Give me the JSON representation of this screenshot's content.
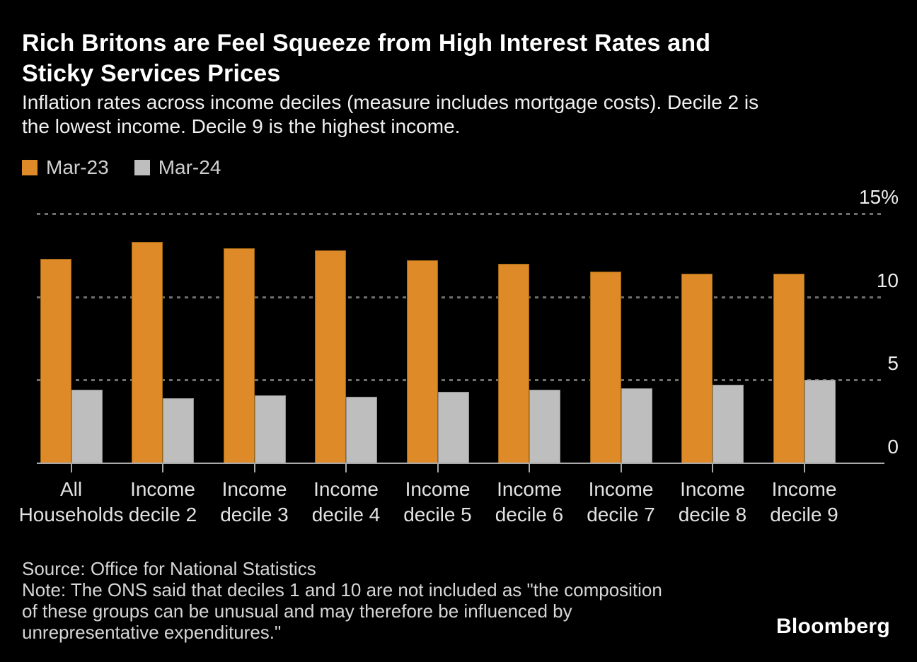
{
  "header": {
    "title_lines": [
      "Rich Britons are Feel Squeeze from High Interest Rates and",
      "Sticky Services Prices"
    ],
    "subtitle_lines": [
      "Inflation rates across income deciles (measure includes mortgage costs). Decile 2 is",
      "the lowest income. Decile 9 is the highest income."
    ]
  },
  "legend": {
    "items": [
      {
        "label": "Mar-23",
        "color": "#DE8A28"
      },
      {
        "label": "Mar-24",
        "color": "#BEBEBE"
      }
    ]
  },
  "chart_data": {
    "type": "bar",
    "title": "Inflation rates across income deciles (measure includes mortgage costs)",
    "categories": [
      "All Households",
      "Income decile 2",
      "Income decile 3",
      "Income decile 4",
      "Income decile 5",
      "Income decile 6",
      "Income decile 7",
      "Income decile 8",
      "Income decile 9"
    ],
    "category_label_lines": [
      [
        "All",
        "Households"
      ],
      [
        "Income",
        "decile 2"
      ],
      [
        "Income",
        "decile 3"
      ],
      [
        "Income",
        "decile 4"
      ],
      [
        "Income",
        "decile 5"
      ],
      [
        "Income",
        "decile 6"
      ],
      [
        "Income",
        "decile 7"
      ],
      [
        "Income",
        "decile 8"
      ],
      [
        "Income",
        "decile 9"
      ]
    ],
    "series": [
      {
        "name": "Mar-23",
        "color": "#DE8A28",
        "border_color": "#9d6512",
        "values": [
          12.3,
          13.3,
          12.9,
          12.8,
          12.2,
          12.0,
          11.5,
          11.4,
          11.4
        ]
      },
      {
        "name": "Mar-24",
        "color": "#BEBEBE",
        "border_color": "#8f8f8f",
        "values": [
          4.4,
          3.9,
          4.1,
          4.0,
          4.3,
          4.4,
          4.5,
          4.7,
          5.0
        ]
      }
    ],
    "ylabel": "",
    "xlabel": "",
    "ylim": [
      0,
      15
    ],
    "yticks": [
      {
        "value": 15,
        "label": "15%"
      },
      {
        "value": 10,
        "label": "10"
      },
      {
        "value": 5,
        "label": "5"
      },
      {
        "value": 0,
        "label": "0"
      }
    ],
    "grid": "horizontal-dotted",
    "legend_position": "top-left"
  },
  "footer": {
    "source": "Source: Office for National Statistics",
    "note_lines": [
      "Note: The ONS said that deciles 1 and 10 are not included as \"the composition",
      "of these groups can be unusual and may therefore be influenced by",
      "unrepresentative expenditures.\""
    ],
    "brand": "Bloomberg"
  },
  "colors": {
    "background": "#000000",
    "gridline": "#6F6F6F",
    "axis_line": "#A9A9A9",
    "title_text": "#FFFFFF",
    "body_text": "#F0F0F0",
    "muted_text": "#D6D6D6"
  }
}
